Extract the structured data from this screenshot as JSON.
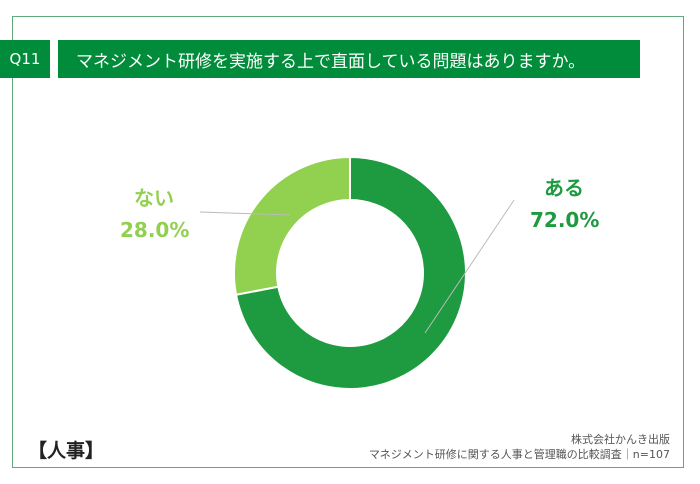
{
  "header": {
    "question_no": "Q11",
    "title": "マネジメント研修を実施する上で直面している問題はありますか。"
  },
  "footer": {
    "group": "【人事】",
    "publisher": "株式会社かんき出版",
    "survey": "マネジメント研修に関する人事と管理職の比較調査｜n=107"
  },
  "chart_data": {
    "type": "pie",
    "donut": true,
    "title": "マネジメント研修を実施する上で直面している問題はありますか。",
    "categories": [
      "ある",
      "ない"
    ],
    "values": [
      72.0,
      28.0
    ],
    "value_labels": [
      "72.0%",
      "28.0%"
    ],
    "colors": [
      "#1e9a40",
      "#92d050"
    ]
  }
}
